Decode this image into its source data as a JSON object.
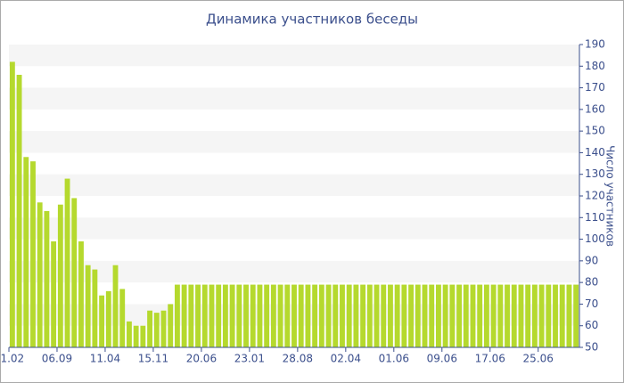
{
  "chart_data": {
    "type": "bar",
    "title": "Динамика участников беседы",
    "y_label": "Число участников",
    "categories": [
      "01.02",
      null,
      null,
      null,
      null,
      null,
      null,
      "06.09",
      null,
      null,
      null,
      null,
      null,
      null,
      "11.04",
      null,
      null,
      null,
      null,
      null,
      null,
      "15.11",
      null,
      null,
      null,
      null,
      null,
      null,
      "20.06",
      null,
      null,
      null,
      null,
      null,
      null,
      "23.01",
      null,
      null,
      null,
      null,
      null,
      null,
      "28.08",
      null,
      null,
      null,
      null,
      null,
      null,
      "02.04",
      null,
      null,
      null,
      null,
      null,
      null,
      "01.06",
      null,
      null,
      null,
      null,
      null,
      null,
      "09.06",
      null,
      null,
      null,
      null,
      null,
      null,
      "17.06",
      null,
      null,
      null,
      null,
      null,
      null,
      "25.06",
      null,
      null,
      null,
      null,
      null
    ],
    "values": [
      182,
      176,
      138,
      136,
      117,
      113,
      99,
      116,
      128,
      119,
      99,
      88,
      86,
      74,
      76,
      88,
      77,
      62,
      60,
      60,
      67,
      66,
      67,
      70,
      79,
      79,
      79,
      79,
      79,
      79,
      79,
      79,
      79,
      79,
      79,
      79,
      79,
      79,
      79,
      79,
      79,
      79,
      79,
      79,
      79,
      79,
      79,
      79,
      79,
      79,
      79,
      79,
      79,
      79,
      79,
      79,
      79,
      79,
      79,
      79,
      79,
      79,
      79,
      79,
      79,
      79,
      79,
      79,
      79,
      79,
      79,
      79,
      79,
      79,
      79,
      79,
      79,
      79,
      79,
      79,
      79,
      79,
      79
    ],
    "color": "#b5d92e",
    "ylim": [
      50,
      190
    ],
    "yticks": [
      50,
      60,
      70,
      80,
      90,
      100,
      110,
      120,
      130,
      140,
      150,
      160,
      170,
      180,
      190
    ],
    "grid": true
  }
}
